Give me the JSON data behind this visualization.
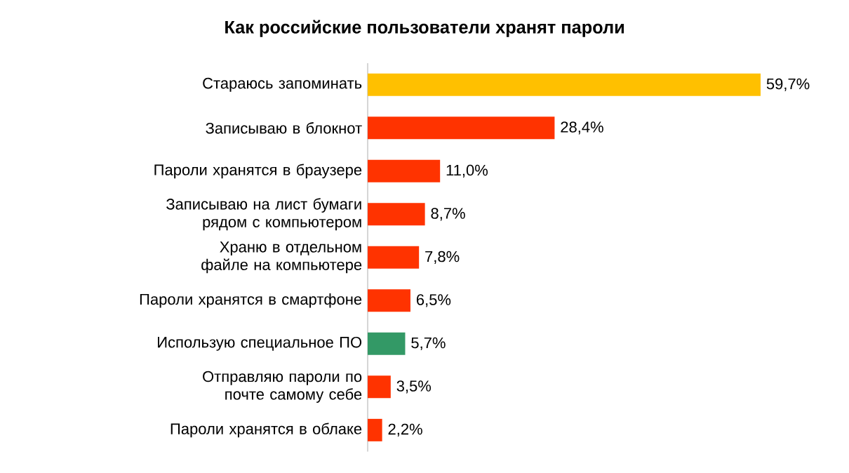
{
  "chart_data": {
    "type": "bar",
    "orientation": "horizontal",
    "title": "Как российские пользователи хранят пароли",
    "categories": [
      "Стараюсь запоминать",
      "Записываю в блокнот",
      "Пароли хранятся в браузере",
      "Записываю на лист бумаги рядом с компьютером",
      "Храню в отдельном файле на компьютере",
      "Пароли хранятся в смартфоне",
      "Использую специальное ПО",
      "Отправляю пароли по почте самому себе",
      "Пароли хранятся в облаке"
    ],
    "values": [
      59.7,
      28.4,
      11.0,
      8.7,
      7.8,
      6.5,
      5.7,
      3.5,
      2.2
    ],
    "colors": [
      "#ffc000",
      "#ff3300",
      "#ff3300",
      "#ff3300",
      "#ff3300",
      "#ff3300",
      "#339966",
      "#ff3300",
      "#ff3300"
    ],
    "value_labels": [
      "59,7%",
      "28,4%",
      "11,0%",
      "8,7%",
      "7,8%",
      "6,5%",
      "5,7%",
      "3,5%",
      "2,2%"
    ]
  }
}
